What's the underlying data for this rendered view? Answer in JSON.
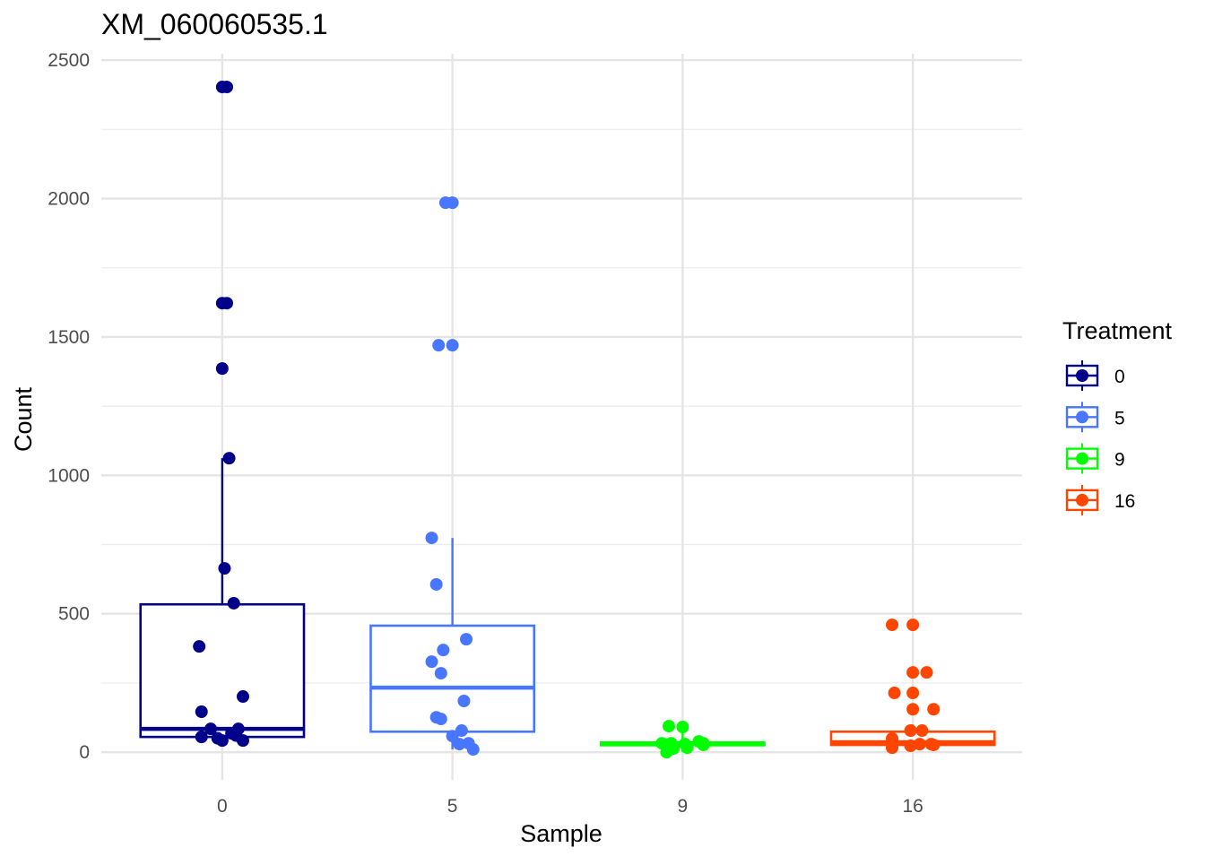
{
  "chart_data": {
    "type": "box",
    "title": "XM_060060535.1",
    "xlabel": "Sample",
    "ylabel": "Count",
    "ylim": [
      -100,
      2523
    ],
    "yticks": [
      0,
      500,
      1000,
      1500,
      2000,
      2500
    ],
    "yminor": [
      250,
      750,
      1250,
      1750,
      2250
    ],
    "grid": true,
    "legend": {
      "title": "Treatment",
      "placement": "right"
    },
    "categories": [
      "0",
      "5",
      "9",
      "16"
    ],
    "series": [
      {
        "name": "0",
        "color": "#00008B",
        "box": {
          "min": 35,
          "q1": 55,
          "median": 84,
          "q3": 534,
          "max": 1062
        },
        "points": [
          [
            0,
            2403
          ],
          [
            0.02,
            2403
          ],
          [
            0,
            1622
          ],
          [
            0.02,
            1622
          ],
          [
            0,
            1386
          ],
          [
            0.03,
            1062
          ],
          [
            0.01,
            664
          ],
          [
            0.05,
            538
          ],
          [
            -0.1,
            382
          ],
          [
            0.09,
            201
          ],
          [
            -0.09,
            146
          ],
          [
            -0.05,
            84
          ],
          [
            0.07,
            84
          ],
          [
            -0.09,
            55
          ],
          [
            0.04,
            68
          ],
          [
            0,
            42
          ],
          [
            0.09,
            42
          ],
          [
            -0.02,
            50
          ],
          [
            0.06,
            60
          ]
        ]
      },
      {
        "name": "5",
        "color": "#4876FF",
        "box": {
          "min": 10,
          "q1": 74,
          "median": 233,
          "q3": 457,
          "max": 774
        },
        "points": [
          [
            -0.03,
            1985
          ],
          [
            0,
            1985
          ],
          [
            -0.06,
            1470
          ],
          [
            0,
            1470
          ],
          [
            -0.09,
            774
          ],
          [
            -0.07,
            606
          ],
          [
            0.06,
            408
          ],
          [
            -0.04,
            369
          ],
          [
            -0.09,
            327
          ],
          [
            -0.05,
            285
          ],
          [
            0.05,
            185
          ],
          [
            -0.07,
            126
          ],
          [
            -0.05,
            120
          ],
          [
            0,
            58
          ],
          [
            0.04,
            78
          ],
          [
            0.03,
            29
          ],
          [
            0.07,
            32
          ],
          [
            0.09,
            10
          ]
        ]
      },
      {
        "name": "9",
        "color": "#00FF00",
        "box": {
          "min": 0,
          "q1": 25,
          "median": 30,
          "q3": 35,
          "max": 94
        },
        "points": [
          [
            -0.06,
            94
          ],
          [
            0,
            91
          ],
          [
            -0.09,
            32
          ],
          [
            -0.05,
            32
          ],
          [
            -0.04,
            13
          ],
          [
            -0.07,
            0
          ],
          [
            0.01,
            29
          ],
          [
            0.02,
            16
          ],
          [
            0.07,
            39
          ],
          [
            0.09,
            32
          ],
          [
            0.09,
            26
          ]
        ]
      },
      {
        "name": "16",
        "color": "#FF4500",
        "box": {
          "min": 10,
          "q1": 26,
          "median": 36,
          "q3": 74,
          "max": 100
        },
        "points": [
          [
            -0.09,
            460
          ],
          [
            0,
            460
          ],
          [
            0,
            288
          ],
          [
            0.06,
            288
          ],
          [
            -0.08,
            214
          ],
          [
            0,
            214
          ],
          [
            0,
            155
          ],
          [
            0.09,
            155
          ],
          [
            -0.01,
            78
          ],
          [
            0.04,
            78
          ],
          [
            -0.09,
            49
          ],
          [
            -0.09,
            16
          ],
          [
            -0.01,
            23
          ],
          [
            0.03,
            29
          ],
          [
            0.08,
            29
          ],
          [
            0.09,
            26
          ]
        ]
      }
    ]
  }
}
